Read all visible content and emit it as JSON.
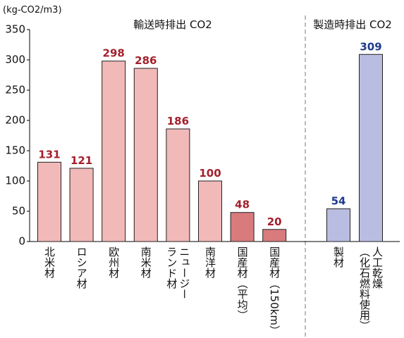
{
  "chart_data": {
    "type": "bar",
    "y_unit": "(kg-CO2/m3)",
    "ylim": [
      0,
      350
    ],
    "yticks": [
      0,
      50,
      100,
      150,
      200,
      250,
      300,
      350
    ],
    "groups": [
      {
        "name": "輸送時排出 CO2",
        "label_color": "#a3202c",
        "categories": [
          "北米材",
          "ロシア材",
          "欧州材",
          "南米材",
          [
            "ニュージー",
            "ランド材"
          ],
          "南洋材",
          "国産材（平均）",
          "国産材（150km）"
        ],
        "values": [
          131,
          121,
          298,
          286,
          186,
          100,
          48,
          20
        ],
        "colors": [
          "#f2b9b9",
          "#f2b9b9",
          "#f2b9b9",
          "#f2b9b9",
          "#f2b9b9",
          "#f2b9b9",
          "#d97a7d",
          "#d97a7d"
        ]
      },
      {
        "name": "製造時排出 CO2",
        "label_color": "#1f3a8c",
        "categories": [
          "製材",
          [
            "人工乾燥",
            "（化石燃料使用）"
          ]
        ],
        "values": [
          54,
          309
        ],
        "colors": [
          "#b9bde2",
          "#b9bde2"
        ]
      }
    ]
  }
}
